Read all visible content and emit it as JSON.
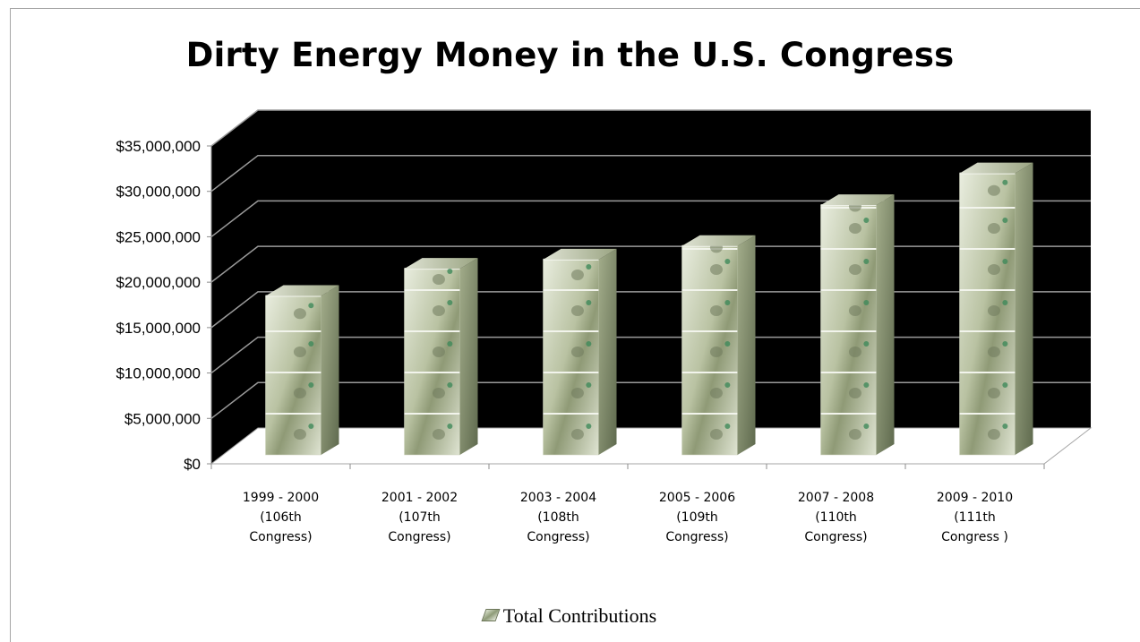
{
  "chart_data": {
    "type": "bar",
    "title": "Dirty Energy Money in the U.S. Congress",
    "categories": [
      [
        "1999 - 2000",
        "(106th",
        "Congress)"
      ],
      [
        "2001 - 2002",
        "(107th",
        "Congress)"
      ],
      [
        "2003 - 2004",
        "(108th",
        "Congress)"
      ],
      [
        "2005 - 2006",
        "(109th",
        "Congress)"
      ],
      [
        "2007 - 2008",
        "(110th",
        "Congress)"
      ],
      [
        "2009 - 2010",
        "(111th",
        "Congress )"
      ]
    ],
    "series": [
      {
        "name": "Total Contributions",
        "values": [
          17500000,
          20500000,
          21500000,
          23000000,
          27500000,
          31000000
        ]
      }
    ],
    "ylim": [
      0,
      35000000
    ],
    "yticks": [
      "$0",
      "$5,000,000",
      "$10,000,000",
      "$15,000,000",
      "$20,000,000",
      "$25,000,000",
      "$30,000,000",
      "$35,000,000"
    ],
    "ytick_values": [
      0,
      5000000,
      10000000,
      15000000,
      20000000,
      25000000,
      30000000,
      35000000
    ],
    "grid": true,
    "legend_position": "bottom",
    "style": "3d-column",
    "colors": {
      "back_wall": "#000000",
      "gridline": "#9a9a9a",
      "floor": "#ffffff",
      "bill_green": "#a7b08d",
      "bill_dark": "#5f6a4e"
    }
  }
}
